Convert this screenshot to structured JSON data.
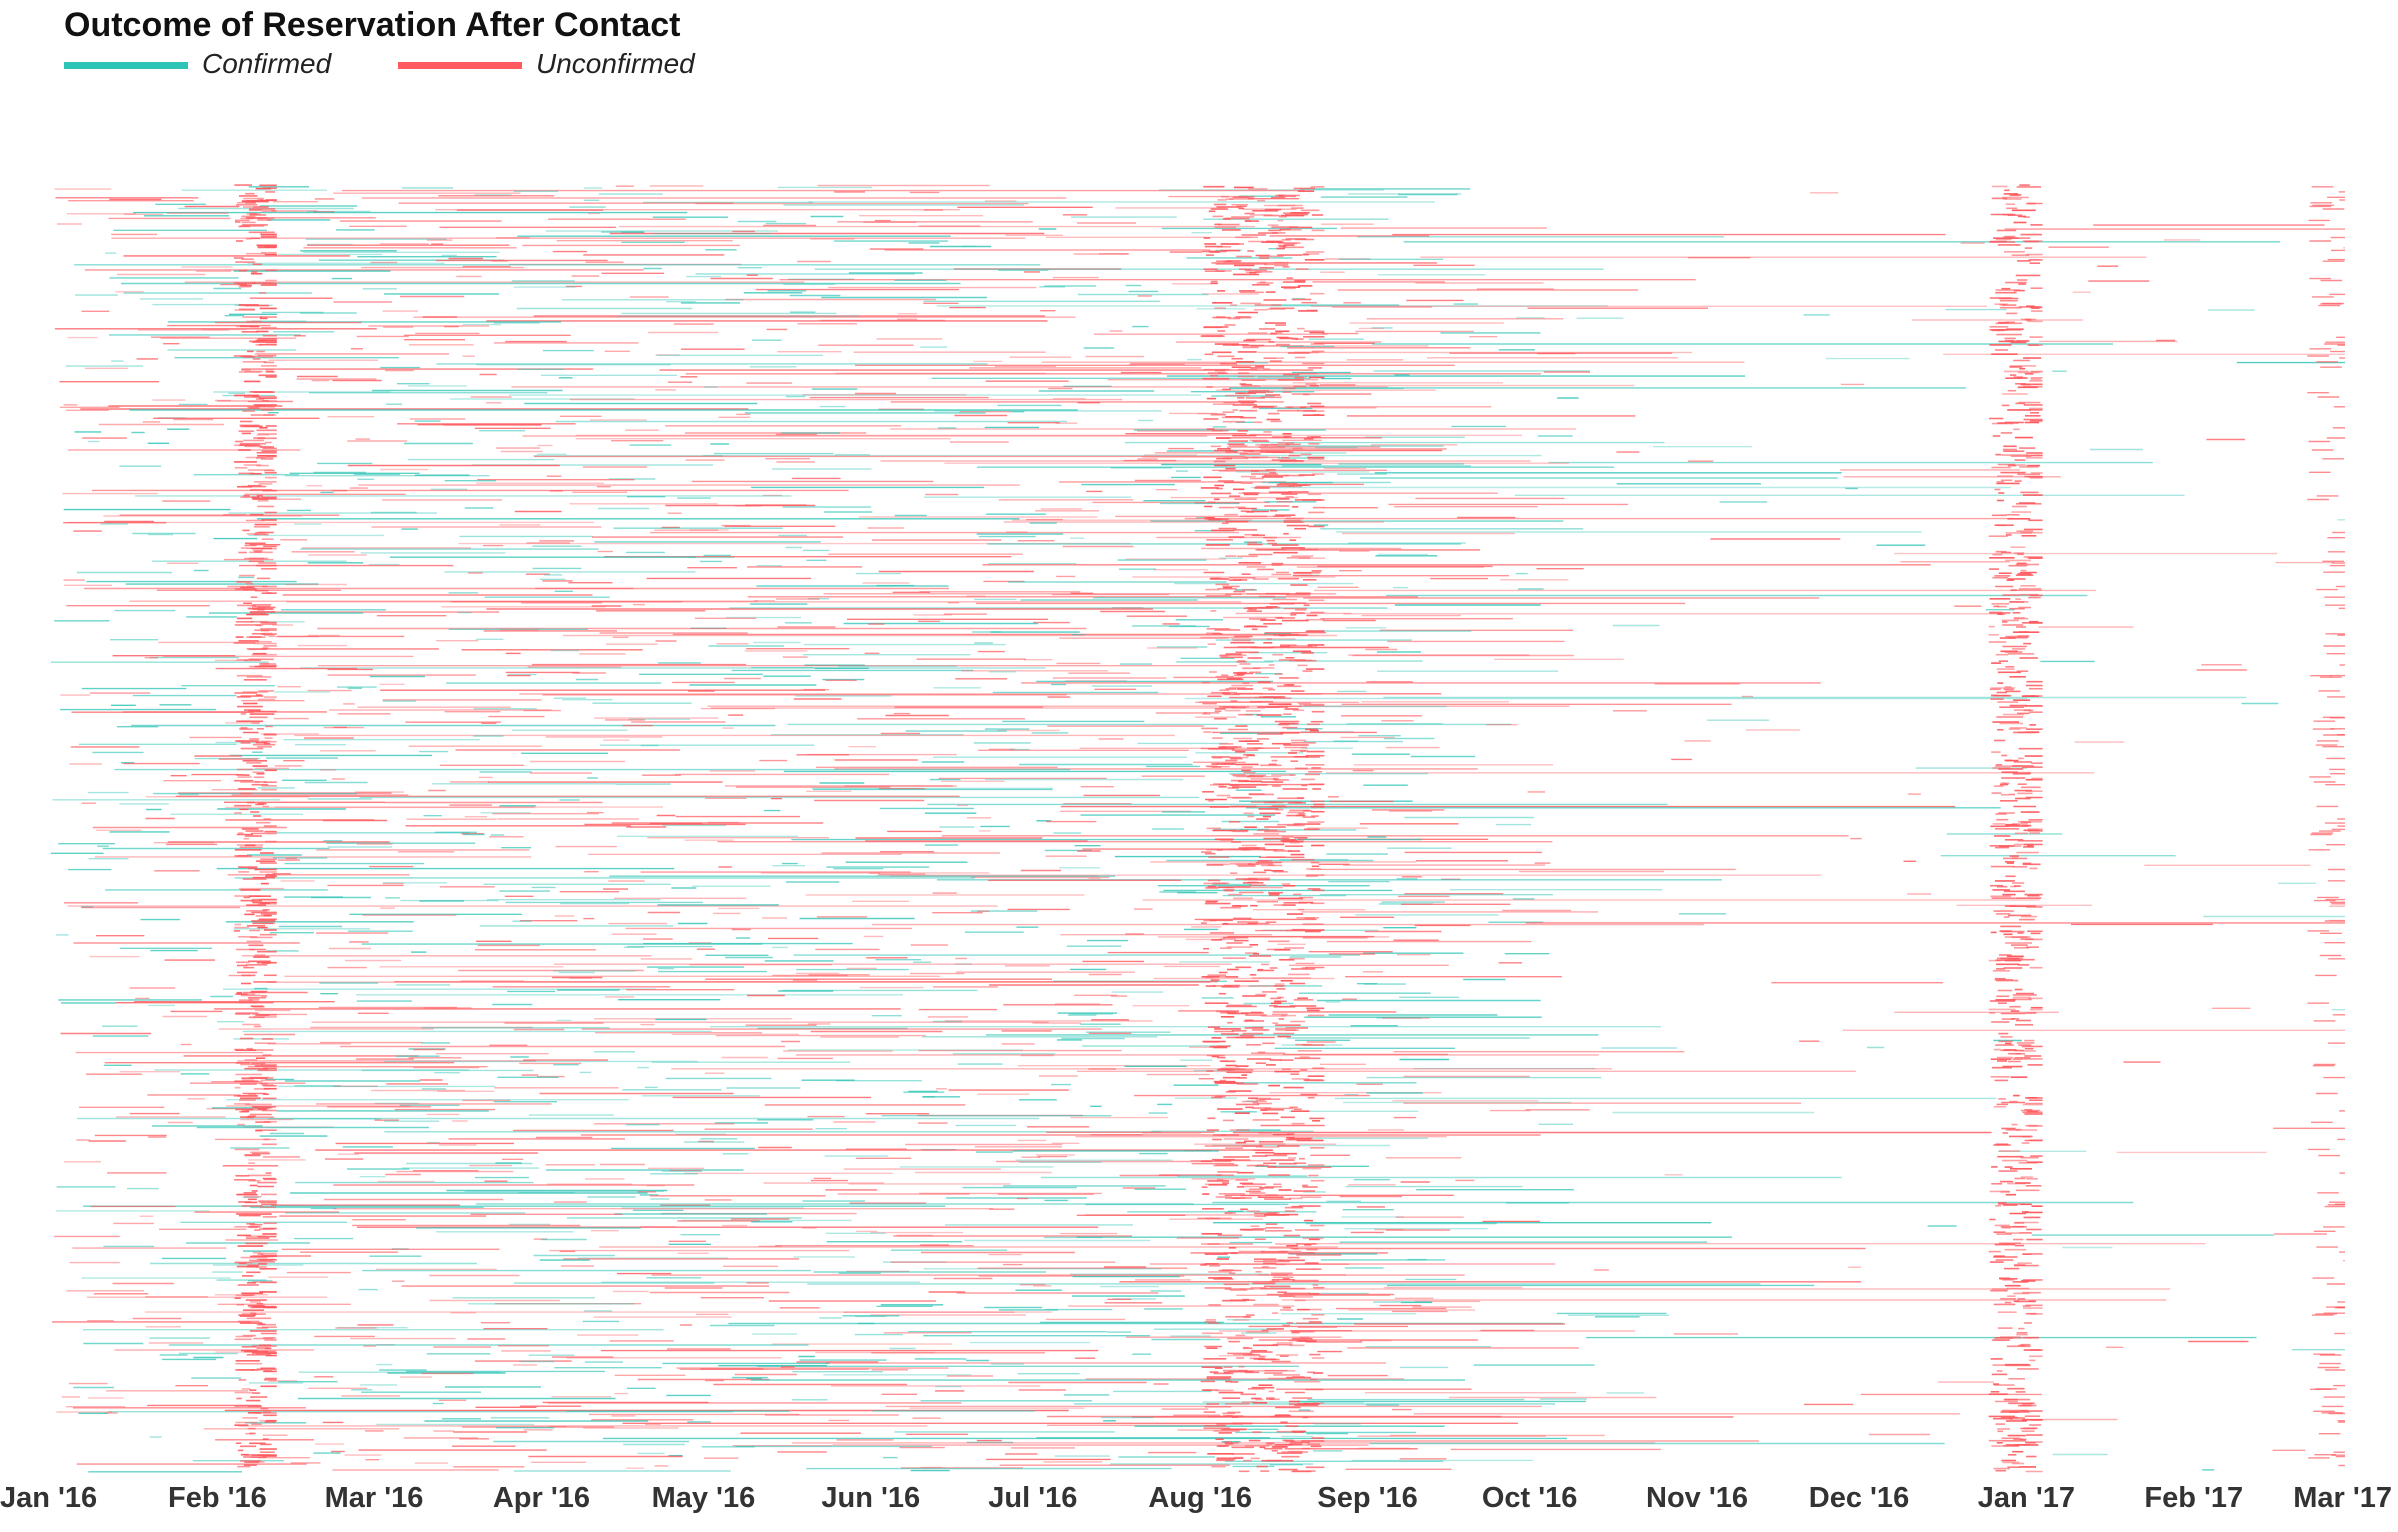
{
  "chart_data": {
    "type": "timeline",
    "title": "Outcome of Reservation After Contact",
    "series": [
      {
        "name": "Confirmed",
        "color": "#2ec4b6"
      },
      {
        "name": "Unconfirmed",
        "color": "#ff5a5f"
      }
    ],
    "x_range": [
      "2016-01-01",
      "2017-03-01"
    ],
    "x_ticks": [
      "Jan '16",
      "Feb '16",
      "Mar '16",
      "Apr '16",
      "May '16",
      "Jun '16",
      "Jul '16",
      "Aug '16",
      "Sep '16",
      "Oct '16",
      "Nov '16",
      "Dec '16",
      "Jan '17",
      "Feb '17",
      "Mar '17"
    ],
    "tick_dates": [
      "2016-01-01",
      "2016-02-01",
      "2016-03-01",
      "2016-04-01",
      "2016-05-01",
      "2016-06-01",
      "2016-07-01",
      "2016-08-01",
      "2016-09-01",
      "2016-10-01",
      "2016-11-01",
      "2016-12-01",
      "2017-01-01",
      "2017-02-01",
      "2017-03-01"
    ],
    "dense_periods": [
      {
        "start": "2016-02-04",
        "end": "2016-02-10",
        "series": "Unconfirmed"
      },
      {
        "start": "2016-08-01",
        "end": "2016-08-22",
        "series": "Unconfirmed"
      },
      {
        "start": "2016-12-25",
        "end": "2017-01-02",
        "series": "Unconfirmed"
      }
    ],
    "grid": false,
    "legend_position": "top-left"
  }
}
